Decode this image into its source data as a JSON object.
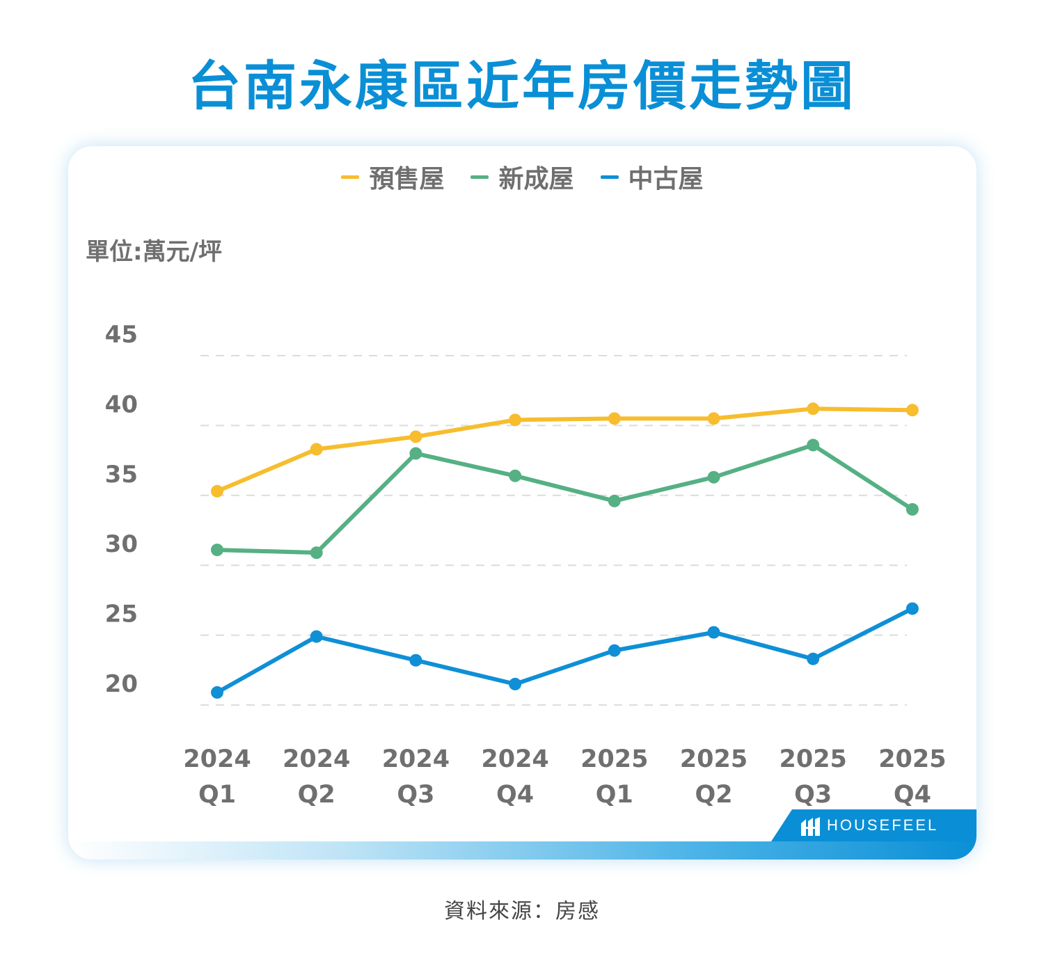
{
  "page": {
    "title": "台南永康區近年房價走勢圖",
    "source": "資料來源：房感"
  },
  "brand": {
    "name": "HOUSEFEEL"
  },
  "colors": {
    "title": "#0a8fd6",
    "presale": "#f7bd2e",
    "new": "#55b083",
    "used": "#0f8fd6"
  },
  "chart_data": {
    "type": "line",
    "title": "台南永康區近年房價走勢圖",
    "ylabel": "單位:萬元/坪",
    "xlabel": "",
    "ylim": [
      20,
      45
    ],
    "yticks": [
      "45",
      "40",
      "35",
      "30",
      "25",
      "20"
    ],
    "grid": true,
    "legend_position": "top-center",
    "categories": [
      {
        "year": "2024",
        "quarter": "Q1"
      },
      {
        "year": "2024",
        "quarter": "Q2"
      },
      {
        "year": "2024",
        "quarter": "Q3"
      },
      {
        "year": "2024",
        "quarter": "Q4"
      },
      {
        "year": "2025",
        "quarter": "Q1"
      },
      {
        "year": "2025",
        "quarter": "Q2"
      },
      {
        "year": "2025",
        "quarter": "Q3"
      },
      {
        "year": "2025",
        "quarter": "Q4"
      }
    ],
    "series": [
      {
        "name": "預售屋",
        "color": "#f7bd2e",
        "values": [
          35.3,
          38.3,
          39.2,
          40.4,
          40.5,
          40.5,
          41.2,
          41.1
        ]
      },
      {
        "name": "新成屋",
        "color": "#55b083",
        "values": [
          31.1,
          30.9,
          38.0,
          36.4,
          34.6,
          36.3,
          38.6,
          34.0
        ]
      },
      {
        "name": "中古屋",
        "color": "#0f8fd6",
        "values": [
          20.9,
          24.9,
          23.2,
          21.5,
          23.9,
          25.2,
          23.3,
          26.9
        ]
      }
    ]
  }
}
